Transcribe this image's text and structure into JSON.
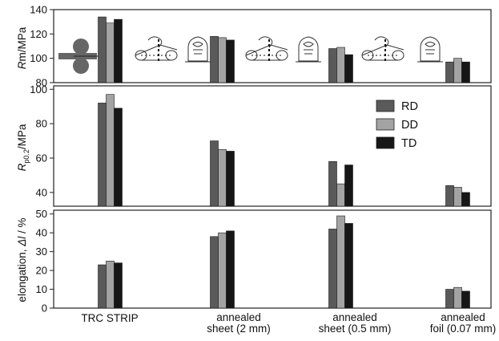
{
  "chart_data": [
    {
      "type": "bar",
      "ylabel": "Rm/MPa",
      "ylim": [
        80,
        140
      ],
      "yticks": [
        80,
        100,
        120,
        140
      ],
      "series": [
        {
          "name": "RD",
          "values": [
            134,
            118,
            108,
            97
          ]
        },
        {
          "name": "DD",
          "values": [
            129,
            117,
            109,
            100
          ]
        },
        {
          "name": "TD",
          "values": [
            132,
            115,
            103,
            97
          ]
        }
      ]
    },
    {
      "type": "bar",
      "ylabel": "Rp0.2/MPa",
      "ylim": [
        32,
        102
      ],
      "yticks": [
        40,
        60,
        80,
        100
      ],
      "series": [
        {
          "name": "RD",
          "values": [
            92,
            70,
            58,
            44
          ]
        },
        {
          "name": "DD",
          "values": [
            97,
            65,
            45,
            43
          ]
        },
        {
          "name": "TD",
          "values": [
            89,
            64,
            56,
            40
          ]
        }
      ]
    },
    {
      "type": "bar",
      "ylabel": "elongation, Δl/%",
      "ylim": [
        0,
        52
      ],
      "yticks": [
        0,
        10,
        20,
        30,
        40,
        50
      ],
      "series": [
        {
          "name": "RD",
          "values": [
            23,
            38,
            42,
            10
          ]
        },
        {
          "name": "DD",
          "values": [
            25,
            40,
            49,
            11
          ]
        },
        {
          "name": "TD",
          "values": [
            24,
            41,
            45,
            9
          ]
        }
      ]
    }
  ],
  "categories": [
    {
      "line1": "TRC  STRIP",
      "line2": ""
    },
    {
      "line1": "annealed",
      "line2": "sheet (2 mm)"
    },
    {
      "line1": "annealed",
      "line2": "sheet (0.5 mm)"
    },
    {
      "line1": "annealed",
      "line2": "foil (0.07 mm)"
    }
  ],
  "legend": {
    "position": "top-right",
    "labels": [
      "RD",
      "DD",
      "TD"
    ]
  },
  "colors": {
    "RD": "#5a5a5a",
    "DD": "#a3a3a3",
    "TD": "#161616"
  },
  "ylabels": {
    "rm_italic": "R",
    "rm_rest": "m/MPa",
    "rp_R": "R",
    "rp_sub": "p0.2",
    "rp_rest": "/MPa",
    "el_text": "elongation, ",
    "el_delta": "Δ",
    "el_l": "l",
    "el_rest": " / %"
  }
}
